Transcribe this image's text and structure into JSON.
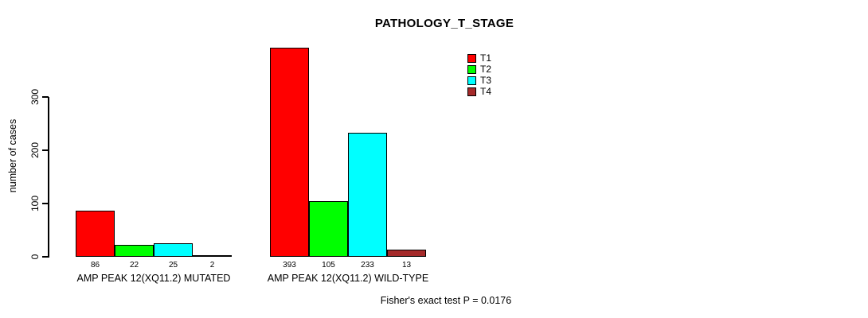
{
  "chart_data": {
    "type": "bar",
    "title": "PATHOLOGY_T_STAGE",
    "ylabel": "number of cases",
    "ylim": [
      0,
      300
    ],
    "yticks": [
      0,
      100,
      200,
      300
    ],
    "grid": false,
    "legend_position": "top-right",
    "series": [
      "T1",
      "T2",
      "T3",
      "T4"
    ],
    "series_colors": [
      "#FF0000",
      "#00FF00",
      "#00FFFF",
      "#A52A2A"
    ],
    "groups": [
      {
        "label": "AMP PEAK 12(XQ11.2) MUTATED",
        "values": [
          86,
          22,
          25,
          2
        ]
      },
      {
        "label": "AMP PEAK 12(XQ11.2) WILD-TYPE",
        "values": [
          393,
          105,
          233,
          13
        ]
      }
    ],
    "annotation": "Fisher's exact test P = 0.0176"
  }
}
